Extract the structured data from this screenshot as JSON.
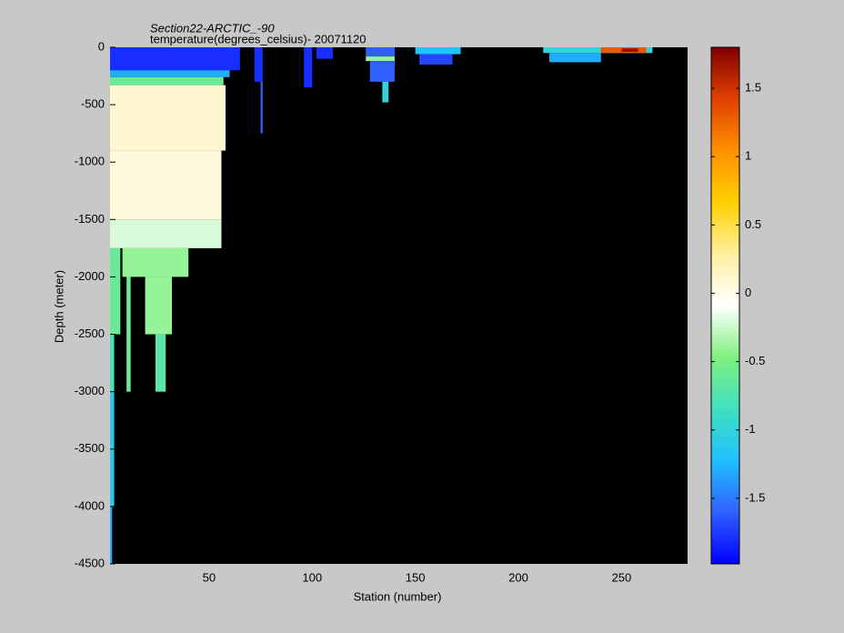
{
  "chart_data": {
    "type": "heatmap",
    "title": "Section22-ARCTIC_-90",
    "subtitle": "temperature(degrees_celsius)- 20071120",
    "x_label": "Station (number)",
    "y_label": "Depth (meter)",
    "xlim": [
      2,
      282
    ],
    "xticks": [
      50,
      100,
      150,
      200,
      250
    ],
    "ylim": [
      -4500,
      0
    ],
    "yticks": [
      0,
      -500,
      -1000,
      -1500,
      -2000,
      -2500,
      -3000,
      -3500,
      -4000,
      -4500
    ],
    "clim": [
      -1.98,
      1.8
    ],
    "cticks": [
      -1.5,
      -1,
      -0.5,
      0,
      0.5,
      1,
      1.5
    ],
    "colormap": [
      "#0000ff",
      "#3060ff",
      "#20c0ff",
      "#40e0c0",
      "#80f080",
      "#ffffff",
      "#fff0a0",
      "#ffd000",
      "#ff9000",
      "#e04000",
      "#800000"
    ],
    "background": "#000000",
    "cells": [
      {
        "x": [
          2,
          65
        ],
        "depth": [
          0,
          -200
        ],
        "value": -1.8
      },
      {
        "x": [
          2,
          60
        ],
        "depth": [
          -200,
          -260
        ],
        "value": -1.3
      },
      {
        "x": [
          2,
          57
        ],
        "depth": [
          -260,
          -330
        ],
        "value": -0.6
      },
      {
        "x": [
          2,
          58
        ],
        "depth": [
          -330,
          -900
        ],
        "value": 0.1
      },
      {
        "x": [
          2,
          56
        ],
        "depth": [
          -900,
          -1500
        ],
        "value": 0.05
      },
      {
        "x": [
          2,
          56
        ],
        "depth": [
          -1500,
          -1750
        ],
        "value": -0.2
      },
      {
        "x": [
          8,
          40
        ],
        "depth": [
          -1750,
          -2000
        ],
        "value": -0.4
      },
      {
        "x": [
          2,
          7
        ],
        "depth": [
          -1750,
          -2500
        ],
        "value": -0.6
      },
      {
        "x": [
          19,
          32
        ],
        "depth": [
          -2000,
          -2500
        ],
        "value": -0.4
      },
      {
        "x": [
          24,
          29
        ],
        "depth": [
          -2500,
          -3000
        ],
        "value": -0.7
      },
      {
        "x": [
          10,
          12
        ],
        "depth": [
          -2000,
          -3000
        ],
        "value": -0.6
      },
      {
        "x": [
          2,
          4
        ],
        "depth": [
          -2500,
          -3000
        ],
        "value": -0.8
      },
      {
        "x": [
          2,
          4
        ],
        "depth": [
          -3000,
          -4000
        ],
        "value": -1.1
      },
      {
        "x": [
          2,
          3
        ],
        "depth": [
          -4000,
          -4500
        ],
        "value": -1.3
      },
      {
        "x": [
          72,
          76
        ],
        "depth": [
          0,
          -300
        ],
        "value": -1.8
      },
      {
        "x": [
          75,
          76
        ],
        "depth": [
          -300,
          -750
        ],
        "value": -1.6
      },
      {
        "x": [
          96,
          100
        ],
        "depth": [
          0,
          -350
        ],
        "value": -1.8
      },
      {
        "x": [
          102,
          110
        ],
        "depth": [
          0,
          -100
        ],
        "value": -1.8
      },
      {
        "x": [
          126,
          140
        ],
        "depth": [
          0,
          -80
        ],
        "value": -1.6
      },
      {
        "x": [
          126,
          140
        ],
        "depth": [
          -80,
          -120
        ],
        "value": -0.4
      },
      {
        "x": [
          128,
          140
        ],
        "depth": [
          -120,
          -300
        ],
        "value": -1.6
      },
      {
        "x": [
          134,
          137
        ],
        "depth": [
          -300,
          -480
        ],
        "value": -1.0
      },
      {
        "x": [
          150,
          172
        ],
        "depth": [
          0,
          -60
        ],
        "value": -1.2
      },
      {
        "x": [
          152,
          168
        ],
        "depth": [
          -60,
          -150
        ],
        "value": -1.7
      },
      {
        "x": [
          212,
          265
        ],
        "depth": [
          0,
          -50
        ],
        "value": -1.0
      },
      {
        "x": [
          240,
          262
        ],
        "depth": [
          0,
          -50
        ],
        "value": 1.3
      },
      {
        "x": [
          250,
          258
        ],
        "depth": [
          -10,
          -40
        ],
        "value": 1.7
      },
      {
        "x": [
          215,
          240
        ],
        "depth": [
          -50,
          -130
        ],
        "value": -1.3
      }
    ]
  }
}
